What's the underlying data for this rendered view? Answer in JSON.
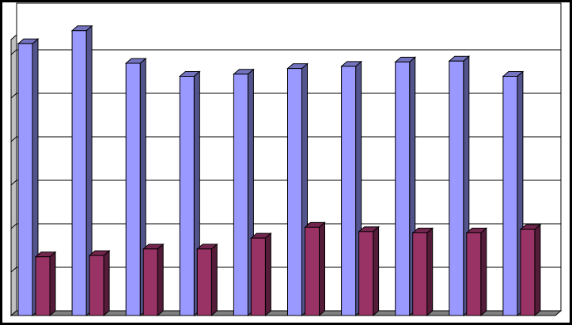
{
  "chart_data": {
    "type": "bar",
    "style": "3d-clustered-column",
    "categories": [
      "",
      "",
      "",
      "",
      "",
      "",
      "",
      "",
      "",
      ""
    ],
    "series": [
      {
        "color": "#9999ff",
        "values": [
          6.25,
          6.55,
          5.8,
          5.5,
          5.55,
          5.68,
          5.73,
          5.83,
          5.85,
          5.5
        ]
      },
      {
        "color": "#993366",
        "values": [
          1.35,
          1.38,
          1.53,
          1.53,
          1.78,
          2.03,
          1.93,
          1.9,
          1.9,
          1.98
        ]
      }
    ],
    "ylim": [
      0,
      7
    ],
    "grid": true,
    "legend": "none"
  }
}
